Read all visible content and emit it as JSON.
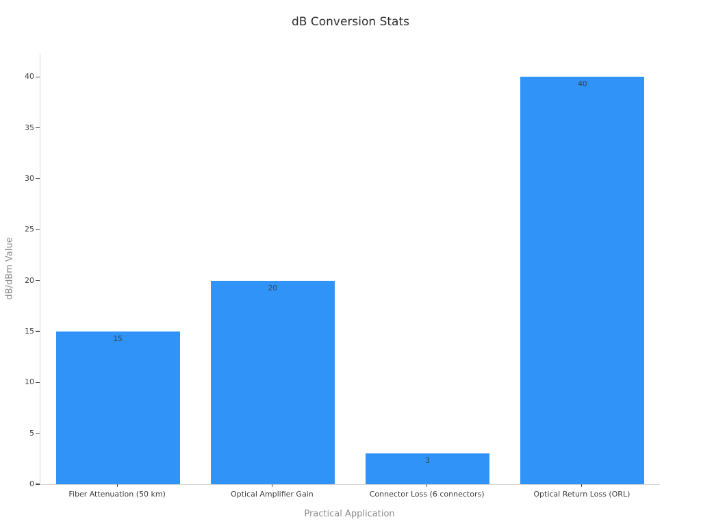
{
  "chart_data": {
    "type": "bar",
    "title": "dB Conversion Stats",
    "xlabel": "Practical Application",
    "ylabel": "dB/dBm Value",
    "categories": [
      "Fiber Attenuation (50 km)",
      "Optical Amplifier Gain",
      "Connector Loss (6 connectors)",
      "Optical Return Loss (ORL)"
    ],
    "values": [
      15,
      20,
      3,
      40
    ],
    "yticks": [
      0,
      5,
      10,
      15,
      20,
      25,
      30,
      35,
      40
    ],
    "ylim": [
      0,
      42.3
    ],
    "grid": false,
    "legend_visible": false,
    "bar_width_fraction": 0.8
  },
  "colors": {
    "background": "#ffffff",
    "bar": "#2f93f7",
    "title_text": "#2d2d2d",
    "axis_line": "#d4d4d4",
    "tick_mark": "#4d4d4d",
    "tick_label": "#3c3c3c",
    "axis_title": "#8a8a8a",
    "bar_label": "#3e3e3e"
  }
}
